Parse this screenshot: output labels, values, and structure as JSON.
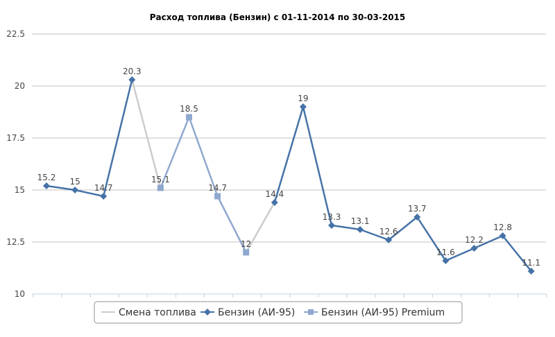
{
  "chart_data": {
    "type": "line",
    "title": "Расход топлива (Бензин) с 01-11-2014 по 30-03-2015",
    "ylim": [
      10,
      22.5
    ],
    "yticks": [
      "10",
      "12.5",
      "15",
      "17.5",
      "20",
      "22.5"
    ],
    "grid": "horizontal",
    "legend_position": "bottom",
    "values": [
      15.2,
      15,
      14.7,
      20.3,
      15.1,
      18.5,
      14.7,
      12,
      14.4,
      19,
      13.3,
      13.1,
      12.6,
      13.7,
      11.6,
      12.2,
      12.8,
      11.1
    ],
    "data_labels": [
      "15.2",
      "15",
      "14.7",
      "20.3",
      "15.1",
      "18.5",
      "14.7",
      "12",
      "14.4",
      "19",
      "13.3",
      "13.1",
      "12.6",
      "13.7",
      "11.6",
      "12.2",
      "12.8",
      "11.1"
    ],
    "series": [
      {
        "name": "Смена топлива",
        "color": "#cccccc",
        "marker": "none",
        "segments": [
          [
            3,
            4
          ],
          [
            7,
            8
          ]
        ]
      },
      {
        "name": "Бензин (АИ-95)",
        "color": "#4572a7",
        "marker": "diamond",
        "segments": [
          [
            0,
            1,
            2,
            3
          ],
          [
            8,
            9,
            10,
            11,
            12,
            13,
            14,
            15,
            16,
            17
          ]
        ]
      },
      {
        "name": "Бензин (АИ-95) Premium",
        "color": "#8fa8cf",
        "marker": "square",
        "segments": [
          [
            4,
            5,
            6,
            7
          ]
        ]
      }
    ]
  }
}
